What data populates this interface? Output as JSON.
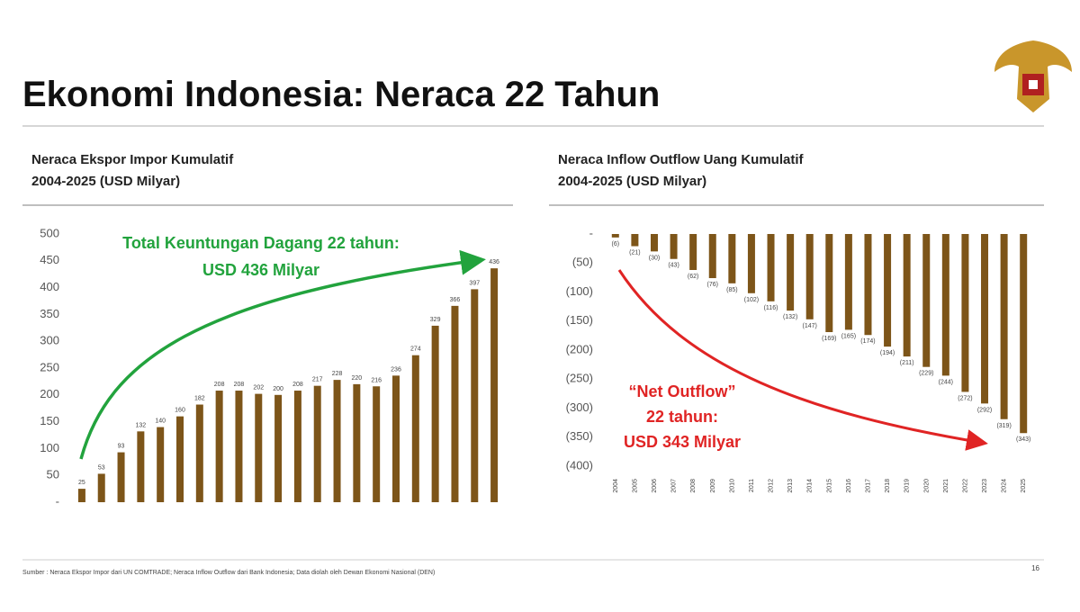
{
  "title": "Ekonomi Indonesia: Neraca 22 Tahun",
  "source": "Sumber : Neraca Ekspor Impor dari UN COMTRADE; Neraca Inflow Outflow dari Bank Indonesia; Data diolah oleh Dewan Ekonomi Nasional (DEN)",
  "page_number": "16",
  "chart_data": [
    {
      "type": "bar",
      "title": "Neraca Ekspor Impor Kumulatif",
      "subtitle": "2004-2025 (USD Milyar)",
      "values": [
        25,
        53,
        93,
        132,
        140,
        160,
        182,
        208,
        208,
        202,
        200,
        208,
        217,
        228,
        220,
        216,
        236,
        274,
        329,
        366,
        397,
        436
      ],
      "color": "#7d5519",
      "ylim": [
        0,
        500
      ],
      "yticks": [
        {
          "value": 0,
          "label": "-"
        },
        50,
        100,
        150,
        200,
        250,
        300,
        350,
        400,
        450,
        500
      ],
      "grid": false,
      "annotations": [
        "Total Keuntungan Dagang 22 tahun:",
        "USD 436 Milyar"
      ],
      "annotation_color": "#22a33d"
    },
    {
      "type": "bar",
      "title": "Neraca Inflow Outflow Uang Kumulatif",
      "subtitle": "2004-2025 (USD Milyar)",
      "categories": [
        "2004",
        "2005",
        "2006",
        "2007",
        "2008",
        "2009",
        "2010",
        "2011",
        "2012",
        "2013",
        "2014",
        "2015",
        "2016",
        "2017",
        "2018",
        "2019",
        "2020",
        "2021",
        "2022",
        "2023",
        "2024",
        "2025"
      ],
      "values": [
        -6,
        -21,
        -30,
        -43,
        -62,
        -76,
        -85,
        -102,
        -116,
        -132,
        -147,
        -169,
        -165,
        -174,
        -194,
        -211,
        -229,
        -244,
        -272,
        -292,
        -319,
        -343
      ],
      "value_labels": [
        "(6)",
        "(21)",
        "(30)",
        "(43)",
        "(62)",
        "(76)",
        "(85)",
        "(102)",
        "(116)",
        "(132)",
        "(147)",
        "(169)",
        "(165)",
        "(174)",
        "(194)",
        "(211)",
        "(229)",
        "(244)",
        "(272)",
        "(292)",
        "(319)",
        "(343)"
      ],
      "color": "#7d5519",
      "ylim": [
        -400,
        0
      ],
      "yticks": [
        {
          "value": 0,
          "label": "-"
        },
        {
          "value": -50,
          "label": "(50)"
        },
        {
          "value": -100,
          "label": "(100)"
        },
        {
          "value": -150,
          "label": "(150)"
        },
        {
          "value": -200,
          "label": "(200)"
        },
        {
          "value": -250,
          "label": "(250)"
        },
        {
          "value": -300,
          "label": "(300)"
        },
        {
          "value": -350,
          "label": "(350)"
        },
        {
          "value": -400,
          "label": "(400)"
        }
      ],
      "grid": false,
      "annotations": [
        "“Net Outflow”",
        "22 tahun:",
        "USD 343 Milyar"
      ],
      "annotation_color": "#e02424"
    }
  ]
}
